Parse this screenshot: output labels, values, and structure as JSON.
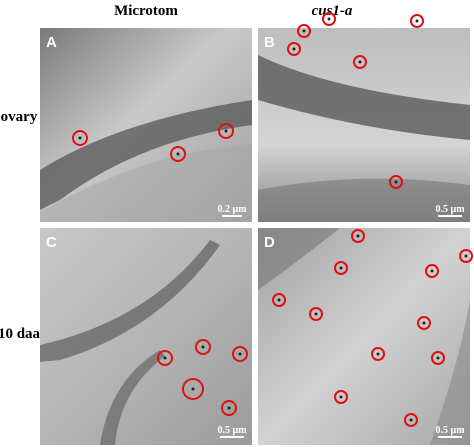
{
  "header": {
    "columns": [
      "Microtom",
      "cus1-a"
    ]
  },
  "rows": [
    "ovary",
    "10 daa"
  ],
  "panels": [
    {
      "letter": "A",
      "scale": "0.2 µm"
    },
    {
      "letter": "B",
      "scale": "0.5 µm"
    },
    {
      "letter": "C",
      "scale": "0.5 µm"
    },
    {
      "letter": "D",
      "scale": "0.5 µm"
    }
  ]
}
